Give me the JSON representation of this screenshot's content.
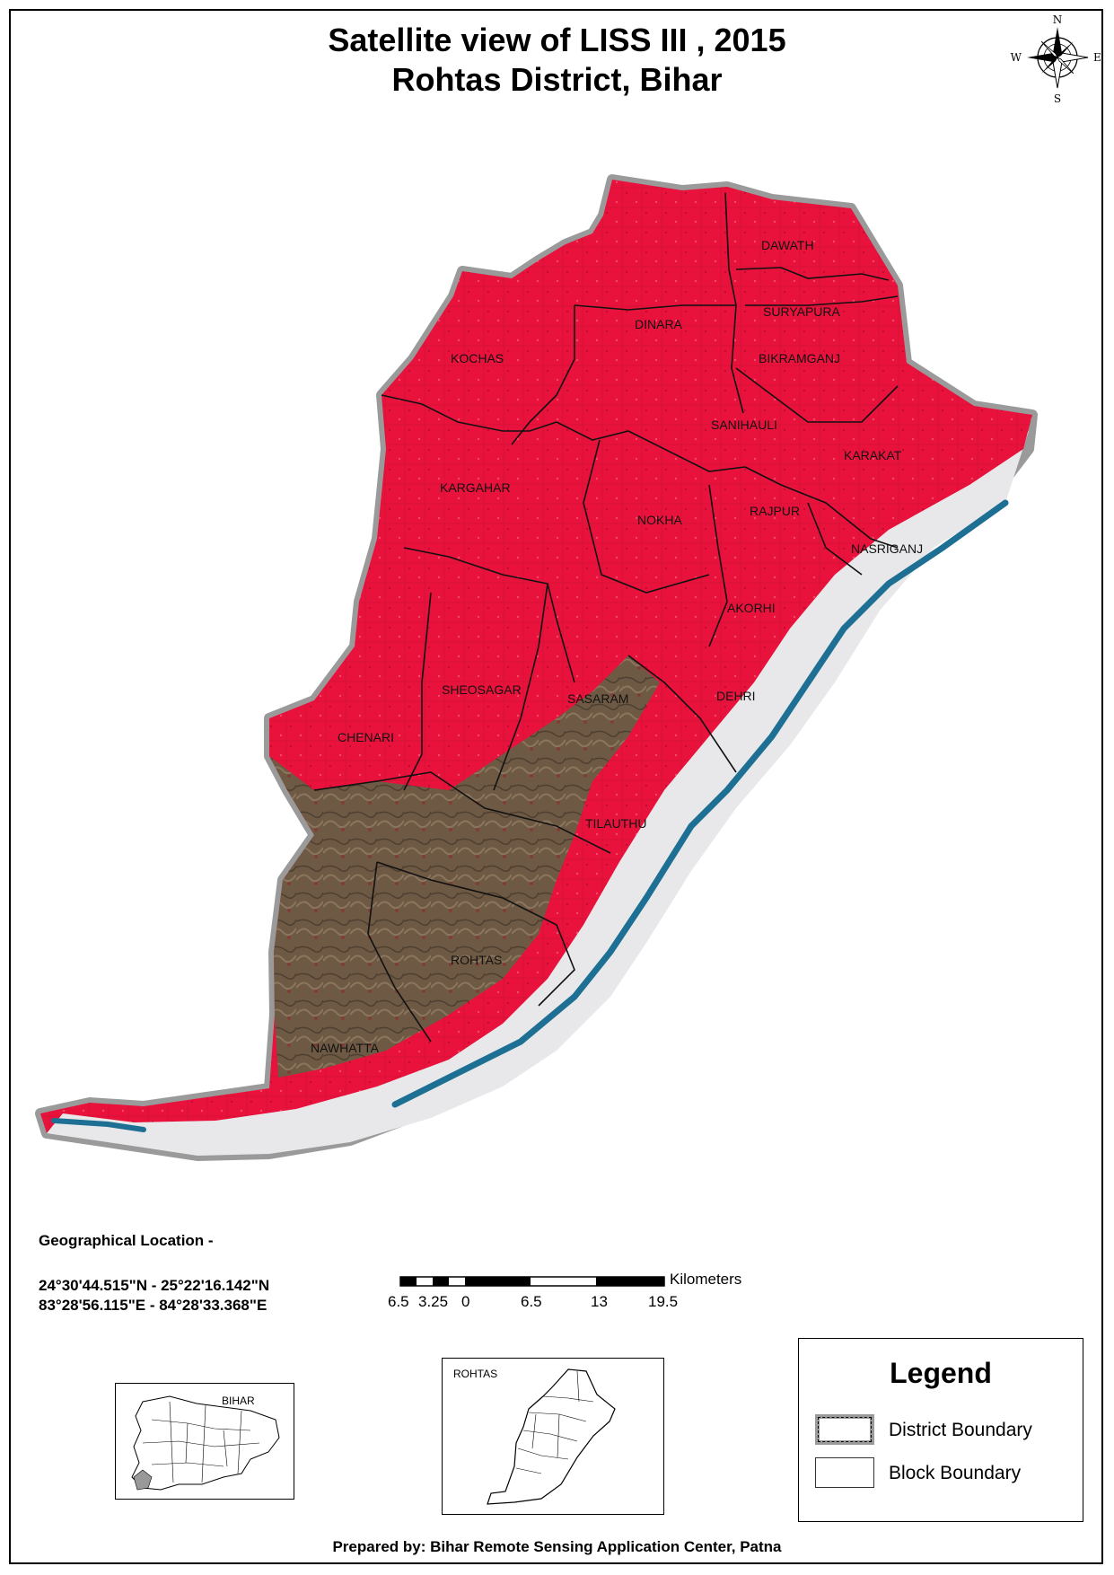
{
  "title": {
    "line1": "Satellite view of LISS III , 2015",
    "line2": "Rohtas District, Bihar"
  },
  "north_arrow": {
    "n": "N",
    "s": "S",
    "e": "E",
    "w": "W"
  },
  "blocks": [
    "DAWATH",
    "SURYAPURA",
    "DINARA",
    "KOCHAS",
    "BIKRAMGANJ",
    "SANIHAULI",
    "KARAKAT",
    "KARGAHAR",
    "NOKHA",
    "RAJPUR",
    "NASRIGANJ",
    "AKORHI",
    "SHEOSAGAR",
    "SASARAM",
    "DEHRI",
    "CHENARI",
    "TILAUTHU",
    "ROHTAS",
    "NAWHATTA"
  ],
  "geo_location": {
    "heading": "Geographical Location -",
    "lat": "24°30'44.515\"N - 25°22'16.142\"N",
    "lon": "83°28'56.115\"E - 84°28'33.368\"E"
  },
  "scale_bar": {
    "unit": "Kilometers",
    "ticks": [
      "6.5",
      "3.25",
      "0",
      "6.5",
      "13",
      "19.5"
    ]
  },
  "insets": {
    "bihar_label": "BIHAR",
    "rohtas_label": "ROHTAS"
  },
  "legend": {
    "title": "Legend",
    "items": [
      {
        "label": "District Boundary",
        "style": "district"
      },
      {
        "label": "Block Boundary",
        "style": "block"
      }
    ]
  },
  "colors": {
    "vegetation": "#e8123c",
    "hills": "#6e5a44",
    "river": "#1d6f93",
    "sand": "#e8e8ea",
    "boundary_halo": "#9a9a9a"
  },
  "footer": "Prepared by: Bihar Remote Sensing Application Center, Patna"
}
